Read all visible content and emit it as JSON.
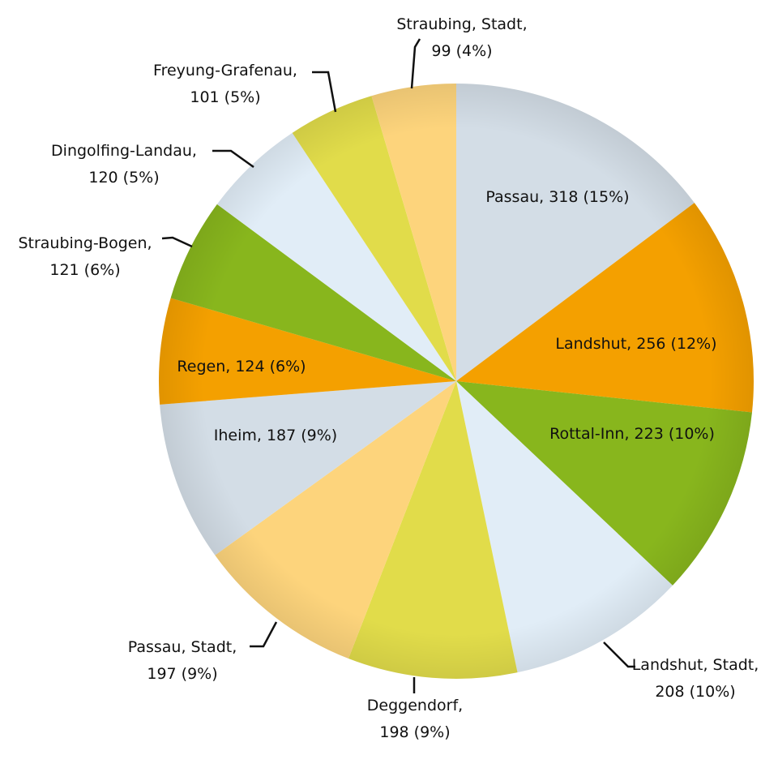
{
  "chart_data": {
    "type": "pie",
    "values": [
      318,
      256,
      223,
      208,
      198,
      197,
      187,
      124,
      121,
      120,
      101,
      99
    ],
    "value_labels": [
      "Passau, 318 (15%)",
      "Landshut, 256 (12%)",
      "Rottal-Inn, 223 (10%)",
      "Landshut, Stadt,\n208 (10%)",
      "Deggendorf,\n198 (9%)",
      "Passau, Stadt,\n197 (9%)",
      "Iheim, 187 (9%)",
      "Regen, 124 (6%)",
      "Straubing-Bogen,\n121 (6%)",
      "Dingolfing-Landau,\n120 (5%)",
      "Freyung-Grafenau,\n101 (5%)",
      "Straubing, Stadt,\n99 (4%)"
    ],
    "colors": [
      "#d3dde6",
      "#f4a000",
      "#88b61d",
      "#e1edf7",
      "#e1dc4a",
      "#fdd47c",
      "#d3dde6",
      "#f4a000",
      "#88b61d",
      "#e1edf7",
      "#e1dc4a",
      "#fdd47c"
    ]
  }
}
